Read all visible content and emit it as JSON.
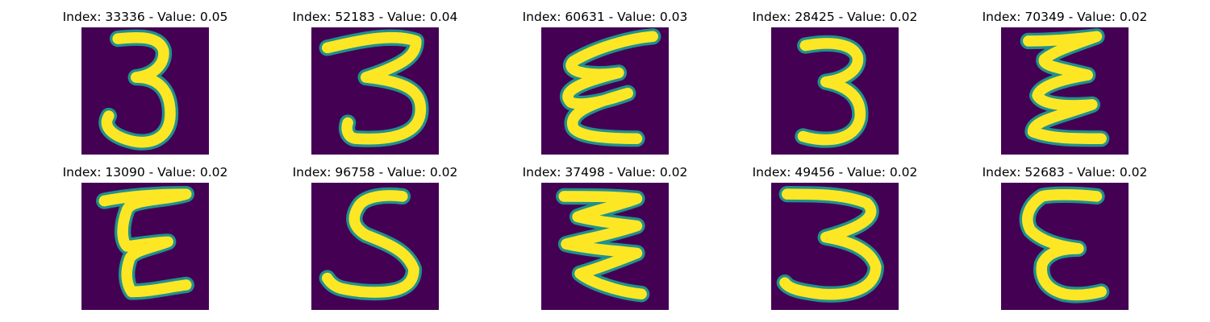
{
  "chart_data": {
    "type": "heatmap",
    "layout": "grid of 2 rows x 5 columns of digit thumbnails (viridis colormap)",
    "colormap": {
      "background": "#440154",
      "edge": "#21918c",
      "core": "#fde725"
    },
    "panels": [
      {
        "title": "Index: 33336 - Value: 0.05",
        "index": 33336,
        "value": 0.05,
        "glyph": "3"
      },
      {
        "title": "Index: 52183 - Value: 0.04",
        "index": 52183,
        "value": 0.04,
        "glyph": "3"
      },
      {
        "title": "Index: 60631 - Value: 0.03",
        "index": 60631,
        "value": 0.03,
        "glyph": "E"
      },
      {
        "title": "Index: 28425 - Value: 0.02",
        "index": 28425,
        "value": 0.02,
        "glyph": "3"
      },
      {
        "title": "Index: 70349 - Value: 0.02",
        "index": 70349,
        "value": 0.02,
        "glyph": "E"
      },
      {
        "title": "Index: 13090 - Value: 0.02",
        "index": 13090,
        "value": 0.02,
        "glyph": "E"
      },
      {
        "title": "Index: 96758 - Value: 0.02",
        "index": 96758,
        "value": 0.02,
        "glyph": "S"
      },
      {
        "title": "Index: 37498 - Value: 0.02",
        "index": 37498,
        "value": 0.02,
        "glyph": "Z"
      },
      {
        "title": "Index: 49456 - Value: 0.02",
        "index": 49456,
        "value": 0.02,
        "glyph": "3"
      },
      {
        "title": "Index: 52683 - Value: 0.02",
        "index": 52683,
        "value": 0.02,
        "glyph": "E"
      }
    ]
  }
}
